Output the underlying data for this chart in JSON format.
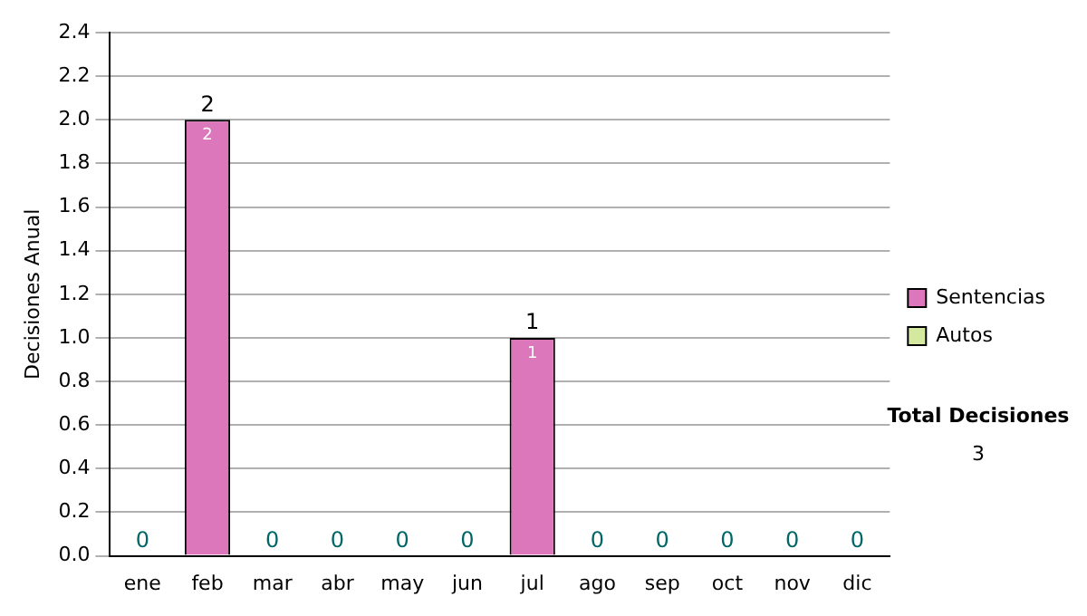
{
  "chart_data": {
    "type": "bar",
    "stacked": true,
    "ylabel": "Decisiones Anual",
    "categories": [
      "ene",
      "feb",
      "mar",
      "abr",
      "may",
      "jun",
      "jul",
      "ago",
      "sep",
      "oct",
      "nov",
      "dic"
    ],
    "series": [
      {
        "name": "Sentencias",
        "color": "#dd77bb",
        "values": [
          0,
          2,
          0,
          0,
          0,
          0,
          1,
          0,
          0,
          0,
          0,
          0
        ],
        "value_labels": [
          null,
          "2",
          null,
          null,
          null,
          null,
          "1",
          null,
          null,
          null,
          null,
          null
        ]
      },
      {
        "name": "Autos",
        "color": "#d4e8a0",
        "values": [
          0,
          0,
          0,
          0,
          0,
          0,
          0,
          0,
          0,
          0,
          0,
          0
        ]
      }
    ],
    "totals": [
      "0",
      "2",
      "0",
      "0",
      "0",
      "0",
      "1",
      "0",
      "0",
      "0",
      "0",
      "0"
    ],
    "ylim": [
      0,
      2.4
    ],
    "yticks": [
      {
        "value": 0,
        "label": "0.0"
      },
      0.2,
      0.4,
      0.6,
      0.8,
      {
        "value": 1,
        "label": "1.0"
      },
      1.2,
      1.4,
      1.6,
      1.8,
      {
        "value": 2,
        "label": "2.0"
      },
      2.2,
      2.4
    ],
    "grid": "y",
    "legend": "right",
    "annotations": [
      "Total Decisiones",
      "3"
    ]
  }
}
